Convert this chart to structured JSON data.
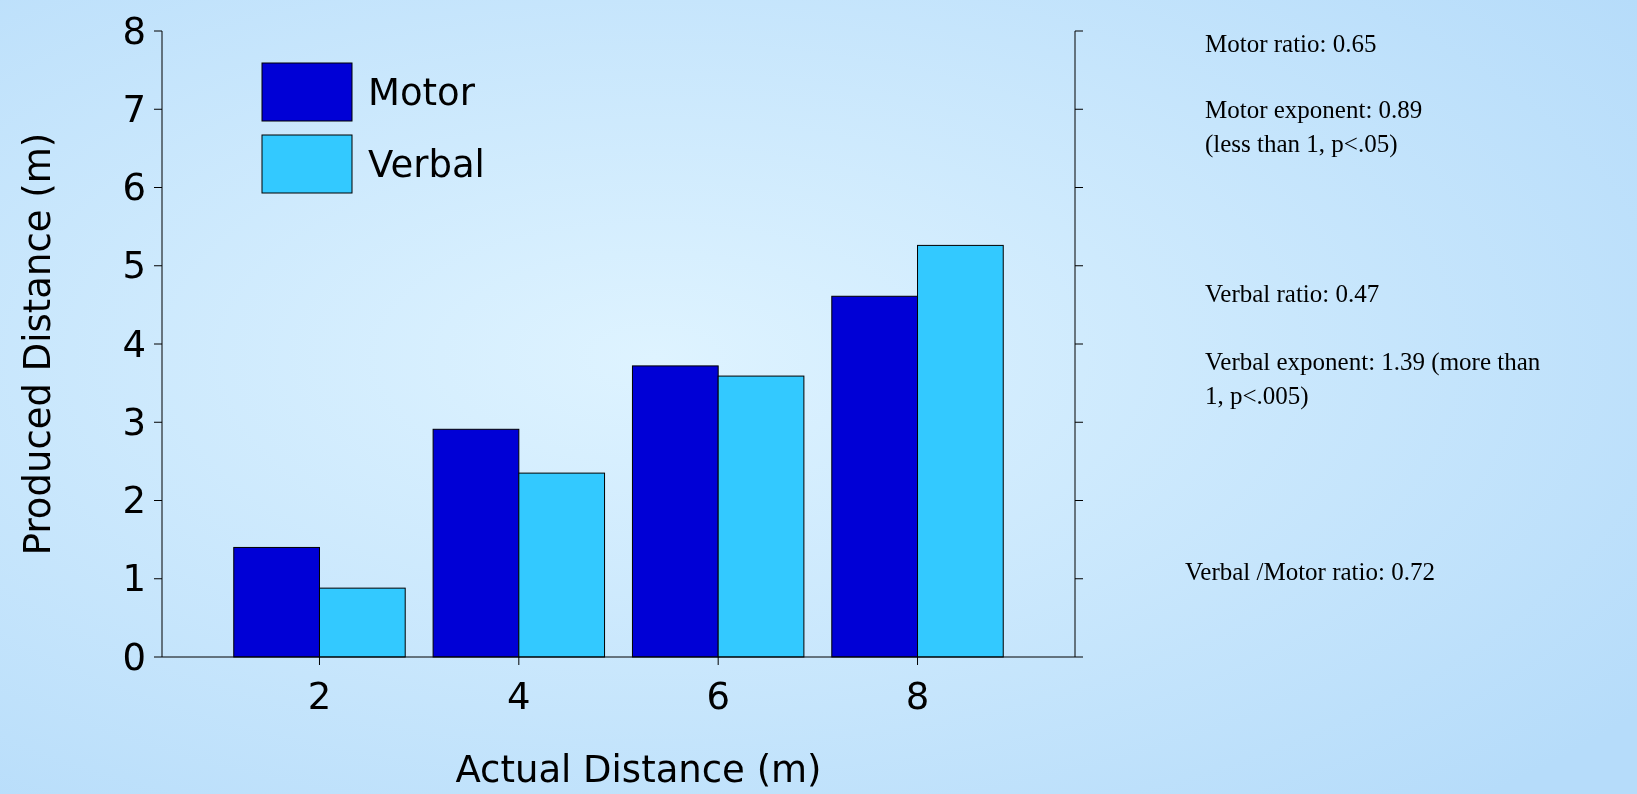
{
  "chart_data": {
    "type": "bar",
    "xlabel": "Actual Distance (m)",
    "ylabel": "Produced Distance (m)",
    "categories": [
      "2",
      "4",
      "6",
      "8"
    ],
    "series": [
      {
        "name": "Motor",
        "color": "#0000d6",
        "values": [
          1.4,
          2.91,
          3.72,
          4.61
        ]
      },
      {
        "name": "Verbal",
        "color": "#33c9ff",
        "values": [
          0.88,
          2.35,
          3.59,
          5.26
        ]
      }
    ],
    "ylim": [
      0,
      8
    ],
    "yticks": [
      0,
      1,
      2,
      3,
      4,
      5,
      6,
      7,
      8
    ],
    "grid": false,
    "legend": "top left",
    "annotations": [
      "Motor ratio: 0.65",
      "Motor exponent: 0.89 (less than 1, p<.05)",
      "Verbal ratio: 0.47",
      "Verbal exponent: 1.39  (more than 1, p<.005)",
      "Verbal /Motor ratio: 0.72"
    ]
  }
}
